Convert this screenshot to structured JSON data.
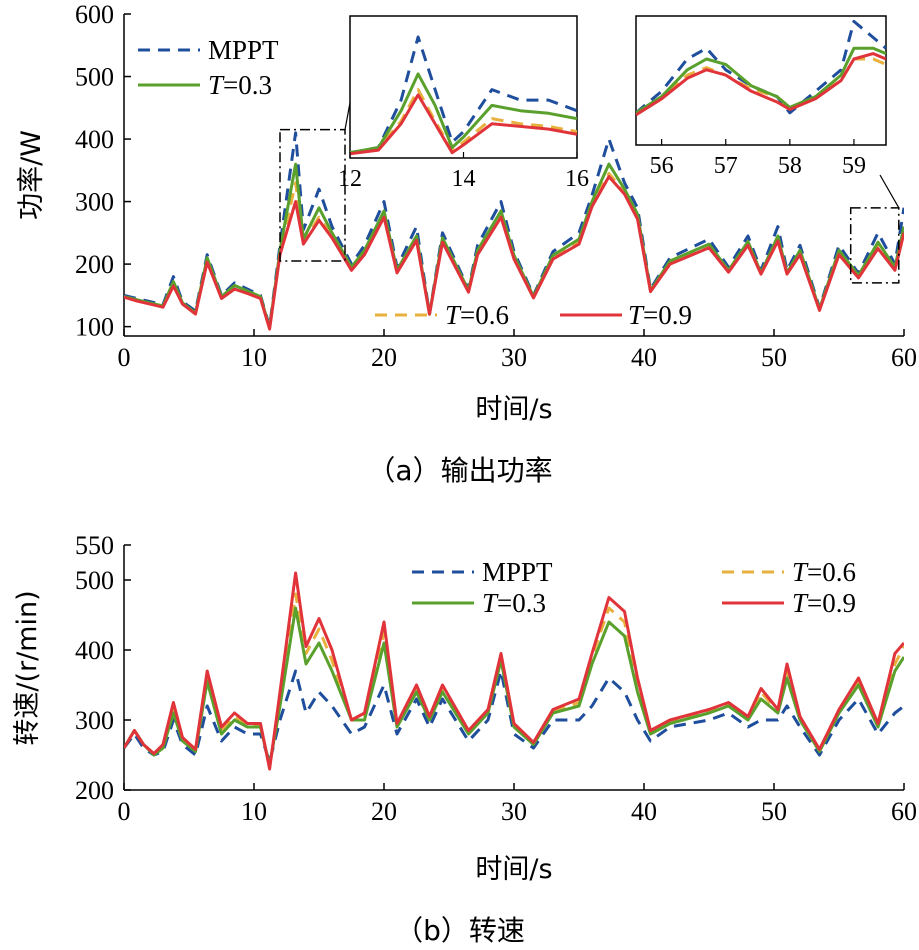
{
  "chart_data": [
    {
      "type": "line",
      "caption": "（a）输出功率",
      "xlabel": "时间/s",
      "ylabel": "功率/W",
      "xlim": [
        0,
        60
      ],
      "ylim": [
        85,
        600
      ],
      "xticks": [
        "0",
        "10",
        "20",
        "30",
        "40",
        "50",
        "60"
      ],
      "yticks": [
        "100",
        "200",
        "300",
        "400",
        "500",
        "600"
      ],
      "legend": [
        {
          "prefix": "",
          "italic": "",
          "suffix": "MPPT",
          "color": "#1f4e9c",
          "dash": "dashed"
        },
        {
          "prefix": "",
          "italic": "T",
          "suffix": "=0.3",
          "color": "#5aa02c",
          "dash": "solid"
        },
        {
          "prefix": "",
          "italic": "T",
          "suffix": "=0.6",
          "color": "#e8b03c",
          "dash": "dashed"
        },
        {
          "prefix": "",
          "italic": "T",
          "suffix": "=0.9",
          "color": "#e0343a",
          "dash": "solid"
        }
      ],
      "x": [
        0,
        1,
        2,
        3,
        3.8,
        4.5,
        5.5,
        6.4,
        7.5,
        8.5,
        9.5,
        10.5,
        11.2,
        12,
        13.2,
        13.8,
        15,
        16,
        17.5,
        18.5,
        20,
        21,
        22.5,
        23.5,
        24.5,
        26.5,
        27.2,
        29,
        30,
        31.5,
        33,
        35,
        36,
        37.3,
        38.5,
        39.5,
        40.5,
        42,
        45,
        46.5,
        48,
        49,
        50.3,
        51,
        52,
        53.5,
        55,
        56.5,
        58,
        59.3,
        60
      ],
      "series": [
        {
          "name": "MPPT",
          "values": [
            150,
            145,
            140,
            135,
            180,
            140,
            125,
            215,
            150,
            170,
            160,
            150,
            100,
            230,
            410,
            255,
            320,
            260,
            200,
            230,
            300,
            195,
            260,
            120,
            250,
            160,
            230,
            300,
            220,
            150,
            220,
            250,
            310,
            400,
            330,
            290,
            160,
            210,
            240,
            195,
            245,
            190,
            260,
            190,
            230,
            130,
            230,
            185,
            250,
            200,
            290
          ]
        },
        {
          "name": "T=0.3",
          "values": [
            148,
            143,
            138,
            133,
            172,
            138,
            122,
            210,
            148,
            166,
            157,
            148,
            98,
            222,
            360,
            240,
            290,
            250,
            195,
            222,
            285,
            190,
            245,
            120,
            242,
            158,
            222,
            285,
            214,
            148,
            214,
            240,
            300,
            360,
            320,
            280,
            158,
            205,
            232,
            190,
            236,
            186,
            245,
            186,
            222,
            128,
            222,
            182,
            235,
            195,
            260
          ]
        },
        {
          "name": "T=0.6",
          "values": [
            148,
            142,
            137,
            132,
            168,
            137,
            121,
            206,
            146,
            163,
            155,
            146,
            97,
            218,
            330,
            235,
            275,
            245,
            192,
            218,
            278,
            188,
            240,
            120,
            238,
            156,
            218,
            278,
            210,
            147,
            210,
            235,
            295,
            345,
            315,
            275,
            157,
            202,
            228,
            188,
            232,
            185,
            240,
            185,
            218,
            127,
            218,
            180,
            230,
            192,
            255
          ]
        },
        {
          "name": "T=0.9",
          "values": [
            147,
            141,
            136,
            131,
            165,
            136,
            120,
            203,
            145,
            160,
            153,
            145,
            96,
            215,
            300,
            232,
            270,
            242,
            190,
            215,
            275,
            186,
            238,
            120,
            235,
            155,
            215,
            275,
            208,
            146,
            208,
            232,
            292,
            340,
            312,
            272,
            156,
            200,
            226,
            187,
            230,
            184,
            237,
            184,
            215,
            126,
            215,
            178,
            225,
            190,
            250
          ]
        }
      ],
      "insets": [
        {
          "xlim": [
            12,
            16
          ],
          "ylim": [
            190,
            460
          ],
          "xticks": [
            "12",
            "14",
            "16"
          ],
          "x": [
            12,
            12.5,
            12.9,
            13.2,
            13.5,
            13.8,
            14,
            14.5,
            15,
            15.5,
            16
          ],
          "series": [
            {
              "name": "MPPT",
              "values": [
                200,
                210,
                300,
                420,
                320,
                220,
                240,
                320,
                300,
                300,
                280
              ]
            },
            {
              "name": "T=0.3",
              "values": [
                200,
                210,
                280,
                350,
                290,
                210,
                230,
                290,
                280,
                275,
                265
              ]
            },
            {
              "name": "T=0.6",
              "values": [
                200,
                208,
                260,
                320,
                260,
                205,
                220,
                265,
                255,
                250,
                240
              ]
            },
            {
              "name": "T=0.9",
              "values": [
                198,
                205,
                255,
                310,
                255,
                200,
                215,
                255,
                250,
                245,
                235
              ]
            }
          ]
        },
        {
          "xlim": [
            55.6,
            59.5
          ],
          "ylim": [
            160,
            280
          ],
          "xticks": [
            "56",
            "57",
            "58",
            "59"
          ],
          "x": [
            55.6,
            56,
            56.4,
            56.7,
            57,
            57.4,
            57.8,
            58,
            58.4,
            58.8,
            59,
            59.3,
            59.5
          ],
          "series": [
            {
              "name": "MPPT",
              "values": [
                190,
                210,
                240,
                250,
                230,
                215,
                205,
                190,
                210,
                230,
                275,
                260,
                250
              ]
            },
            {
              "name": "T=0.3",
              "values": [
                190,
                205,
                230,
                240,
                235,
                215,
                205,
                195,
                205,
                225,
                250,
                250,
                245
              ]
            },
            {
              "name": "T=0.6",
              "values": [
                190,
                205,
                225,
                232,
                225,
                212,
                205,
                195,
                205,
                220,
                240,
                240,
                235
              ]
            },
            {
              "name": "T=0.9",
              "values": [
                188,
                203,
                222,
                230,
                225,
                210,
                200,
                193,
                203,
                220,
                240,
                245,
                240
              ]
            }
          ]
        }
      ]
    },
    {
      "type": "line",
      "caption": "（b）转速",
      "xlabel": "时间/s",
      "ylabel": "转速/(r/min)",
      "xlim": [
        0,
        60
      ],
      "ylim": [
        200,
        550
      ],
      "xticks": [
        "0",
        "10",
        "20",
        "30",
        "40",
        "50",
        "60"
      ],
      "yticks": [
        "200",
        "300",
        "400",
        "500",
        "550"
      ],
      "legend": [
        {
          "prefix": "",
          "italic": "",
          "suffix": "MPPT",
          "color": "#1f4e9c",
          "dash": "dashed"
        },
        {
          "prefix": "",
          "italic": "T",
          "suffix": "=0.3",
          "color": "#5aa02c",
          "dash": "solid"
        },
        {
          "prefix": "",
          "italic": "T",
          "suffix": "=0.6",
          "color": "#e8b03c",
          "dash": "dashed"
        },
        {
          "prefix": "",
          "italic": "T",
          "suffix": "=0.9",
          "color": "#e0343a",
          "dash": "solid"
        }
      ],
      "x": [
        0,
        0.8,
        1.5,
        2.3,
        3,
        3.8,
        4.5,
        5.5,
        6.4,
        7.5,
        8.5,
        9.5,
        10.5,
        11.2,
        12,
        13.2,
        14,
        15,
        16,
        17.5,
        18.5,
        20,
        21,
        22.5,
        23.5,
        24.5,
        26.5,
        28,
        29,
        30,
        31.5,
        33,
        35,
        36,
        37.3,
        38.5,
        39.5,
        40.5,
        42,
        45,
        46.5,
        48,
        49,
        50.3,
        51,
        52,
        53.5,
        55,
        56.5,
        58,
        59.3,
        60
      ],
      "series": [
        {
          "name": "MPPT",
          "values": [
            260,
            280,
            260,
            250,
            255,
            300,
            265,
            250,
            320,
            270,
            290,
            280,
            280,
            240,
            300,
            370,
            310,
            340,
            320,
            280,
            290,
            350,
            280,
            330,
            290,
            330,
            270,
            300,
            370,
            280,
            260,
            300,
            300,
            320,
            360,
            340,
            300,
            270,
            290,
            300,
            310,
            290,
            300,
            300,
            320,
            290,
            250,
            300,
            330,
            280,
            310,
            320
          ]
        },
        {
          "name": "T=0.3",
          "values": [
            260,
            285,
            265,
            250,
            260,
            310,
            270,
            255,
            355,
            280,
            300,
            290,
            290,
            235,
            320,
            460,
            380,
            410,
            370,
            300,
            300,
            410,
            290,
            340,
            300,
            340,
            280,
            310,
            385,
            290,
            265,
            310,
            320,
            380,
            440,
            420,
            340,
            280,
            295,
            310,
            320,
            300,
            330,
            310,
            360,
            300,
            255,
            310,
            350,
            290,
            370,
            390
          ]
        },
        {
          "name": "T=0.6",
          "values": [
            260,
            285,
            265,
            252,
            262,
            315,
            272,
            257,
            362,
            285,
            305,
            292,
            292,
            234,
            330,
            480,
            395,
            430,
            385,
            300,
            305,
            425,
            292,
            345,
            302,
            345,
            282,
            312,
            390,
            292,
            266,
            312,
            325,
            390,
            460,
            440,
            350,
            282,
            297,
            312,
            322,
            302,
            340,
            312,
            370,
            302,
            257,
            312,
            355,
            292,
            380,
            405
          ]
        },
        {
          "name": "T=0.9",
          "values": [
            260,
            285,
            265,
            252,
            265,
            325,
            275,
            258,
            370,
            290,
            310,
            295,
            295,
            230,
            340,
            510,
            405,
            445,
            400,
            300,
            310,
            440,
            295,
            350,
            305,
            350,
            285,
            315,
            395,
            295,
            268,
            315,
            330,
            395,
            475,
            455,
            360,
            285,
            300,
            315,
            325,
            305,
            345,
            315,
            380,
            305,
            258,
            315,
            360,
            295,
            395,
            410
          ]
        }
      ]
    }
  ]
}
